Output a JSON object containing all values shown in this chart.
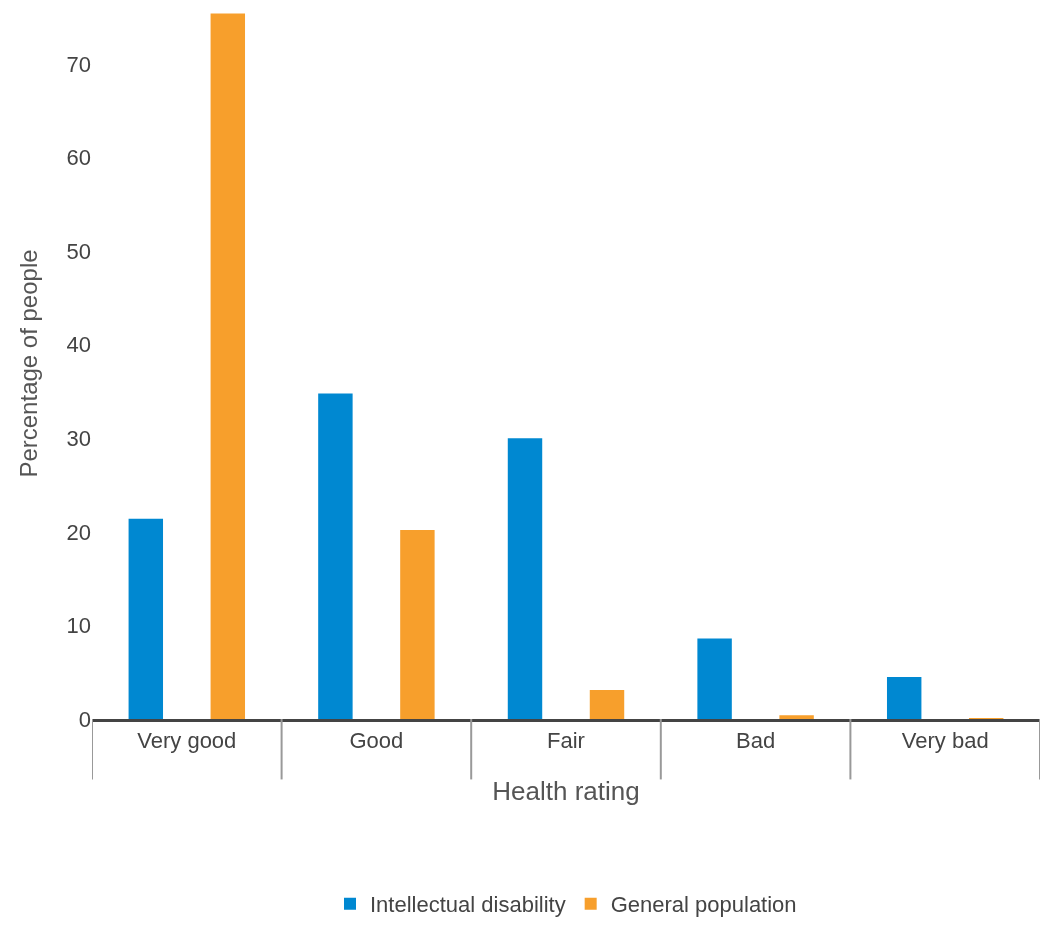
{
  "chart_data": {
    "type": "bar",
    "xlabel": "Health rating",
    "ylabel": "Percentage of people",
    "categories": [
      "Very good",
      "Good",
      "Fair",
      "Bad",
      "Very bad"
    ],
    "series": [
      {
        "name": "Intellectual disability",
        "color": "#0088d1",
        "values": [
          21.4,
          34.8,
          30.0,
          8.6,
          4.5
        ]
      },
      {
        "name": "General population",
        "color": "#f79f2c",
        "values": [
          75.4,
          20.2,
          3.1,
          0.4,
          0.1
        ]
      }
    ],
    "ylim": [
      0,
      76
    ],
    "yticks": [
      0,
      10,
      20,
      30,
      40,
      50,
      60,
      70
    ],
    "grid": false,
    "legend": "bottom"
  }
}
